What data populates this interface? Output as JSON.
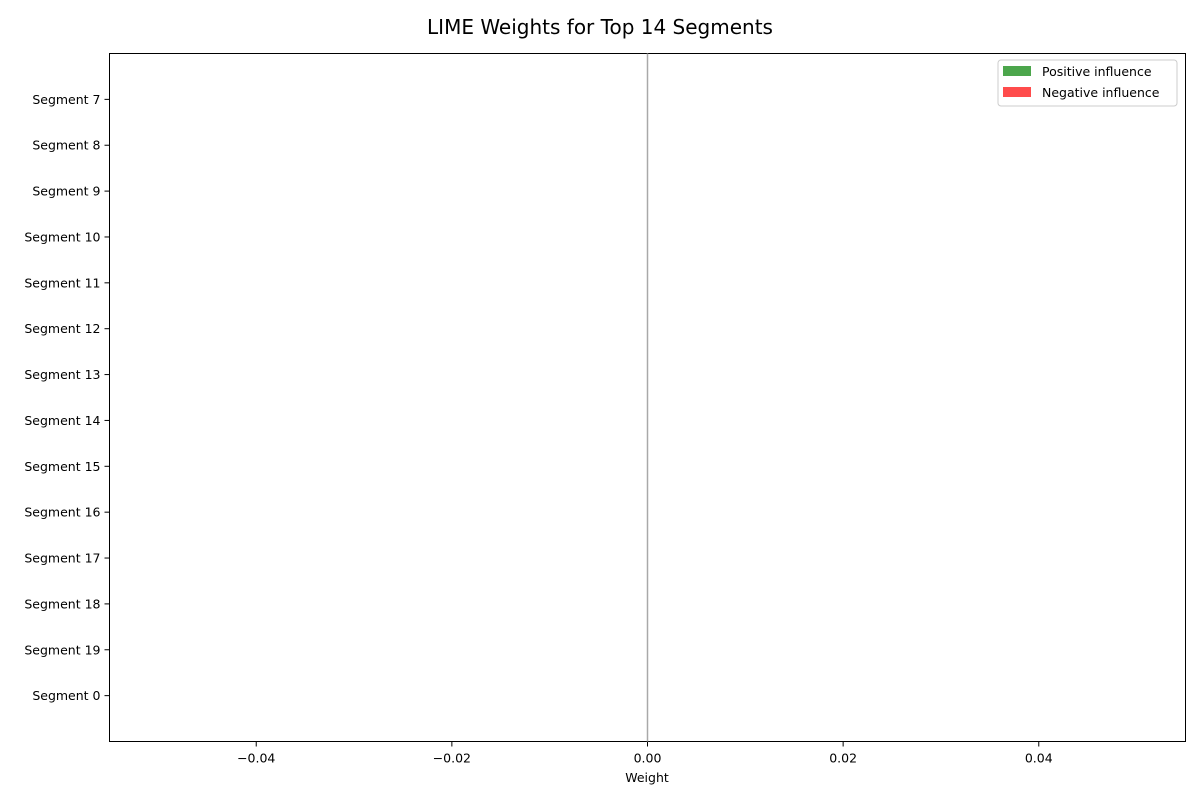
{
  "chart_data": {
    "type": "bar",
    "orientation": "horizontal",
    "title": "LIME Weights for Top 14 Segments",
    "xlabel": "Weight",
    "ylabel": "",
    "xlim": [
      -0.055,
      0.055
    ],
    "xticks": [
      -0.04,
      -0.02,
      0.0,
      0.02,
      0.04
    ],
    "xtick_labels": [
      "−0.04",
      "−0.02",
      "0.00",
      "0.02",
      "0.04"
    ],
    "categories": [
      "Segment 7",
      "Segment 8",
      "Segment 9",
      "Segment 10",
      "Segment 11",
      "Segment 12",
      "Segment 13",
      "Segment 14",
      "Segment 15",
      "Segment 16",
      "Segment 17",
      "Segment 18",
      "Segment 19",
      "Segment 0"
    ],
    "values": [
      0,
      0,
      0,
      0,
      0,
      0,
      0,
      0,
      0,
      0,
      0,
      0,
      0,
      0
    ],
    "reference_line": 0,
    "grid": false,
    "legend": {
      "placement": "top-right",
      "entries": [
        {
          "label": "Positive influence",
          "color": "#4ca64c"
        },
        {
          "label": "Negative influence",
          "color": "#ff4c4c"
        }
      ]
    },
    "colors": {
      "positive": "#4ca64c",
      "negative": "#ff4c4c",
      "zero_line": "#a9a9a9"
    }
  }
}
